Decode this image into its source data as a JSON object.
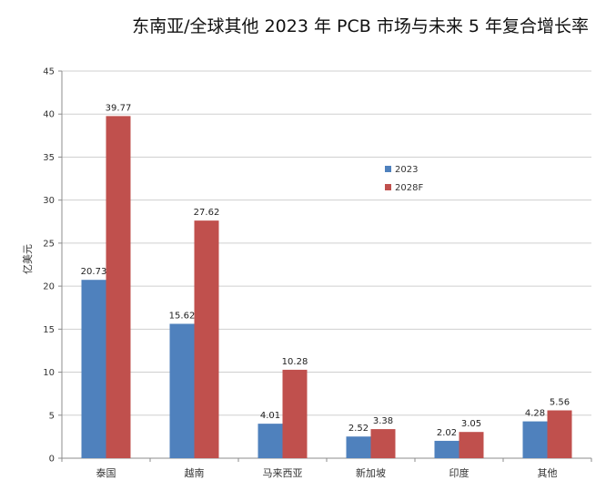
{
  "chart_data": {
    "type": "bar",
    "title": "东南亚/全球其他 2023 年 PCB 市场与未来 5 年复合增长率",
    "ylabel": "亿美元",
    "ylim": [
      0,
      45
    ],
    "yticks": [
      0,
      5,
      10,
      15,
      20,
      25,
      30,
      35,
      40,
      45
    ],
    "categories": [
      "泰国",
      "越南",
      "马来西亚",
      "新加坡",
      "印度",
      "其他"
    ],
    "series": [
      {
        "name": "2023",
        "color": "#4F81BD",
        "values": [
          20.73,
          15.62,
          4.01,
          2.52,
          2.02,
          4.28
        ]
      },
      {
        "name": "2028F",
        "color": "#C0504D",
        "values": [
          39.77,
          27.62,
          10.28,
          3.38,
          3.05,
          5.56
        ]
      }
    ],
    "grid": true,
    "legend": "center-right"
  }
}
